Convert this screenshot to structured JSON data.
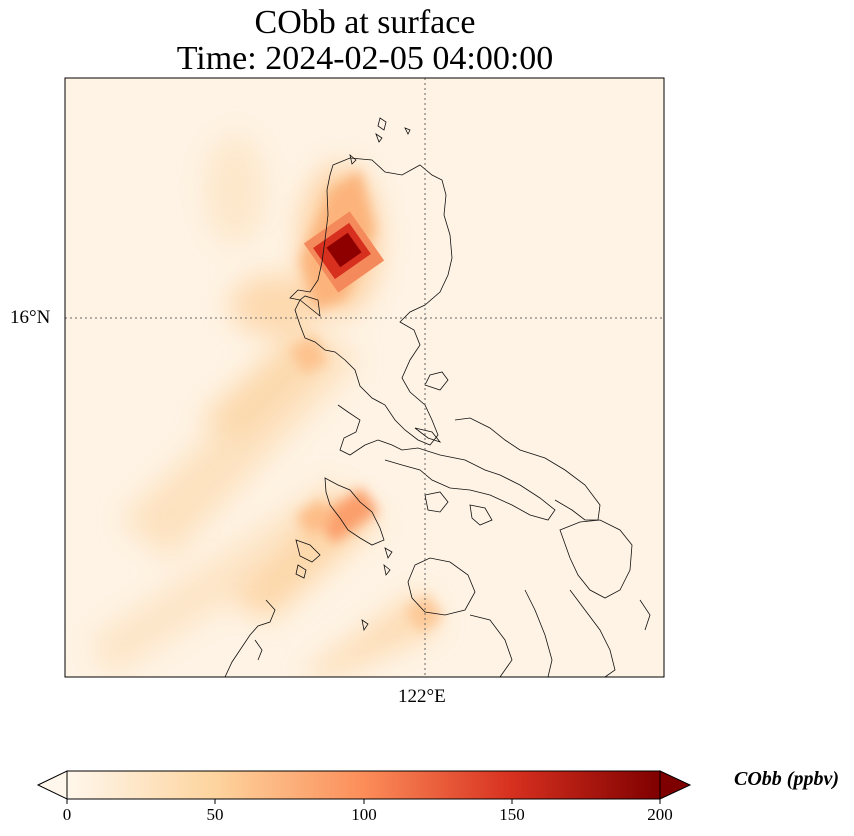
{
  "title": {
    "line1": "CObb at surface",
    "line2": "Time: 2024-02-05 04:00:00"
  },
  "map": {
    "gridlines": {
      "latitude": "16°N",
      "longitude": "122°E",
      "style": "dotted"
    },
    "variable": "CObb",
    "hotspot_max_ppbv": 200,
    "region": "Luzon, Philippines"
  },
  "colorbar": {
    "label": "CObb (ppbv)",
    "ticks": [
      "0",
      "50",
      "100",
      "150",
      "200"
    ],
    "min": 0,
    "max": 200,
    "colormap": "OrRd",
    "colors": [
      "#fff7ec",
      "#fdd49e",
      "#fc8d59",
      "#d7301f",
      "#7f0000"
    ],
    "extend": "both"
  }
}
